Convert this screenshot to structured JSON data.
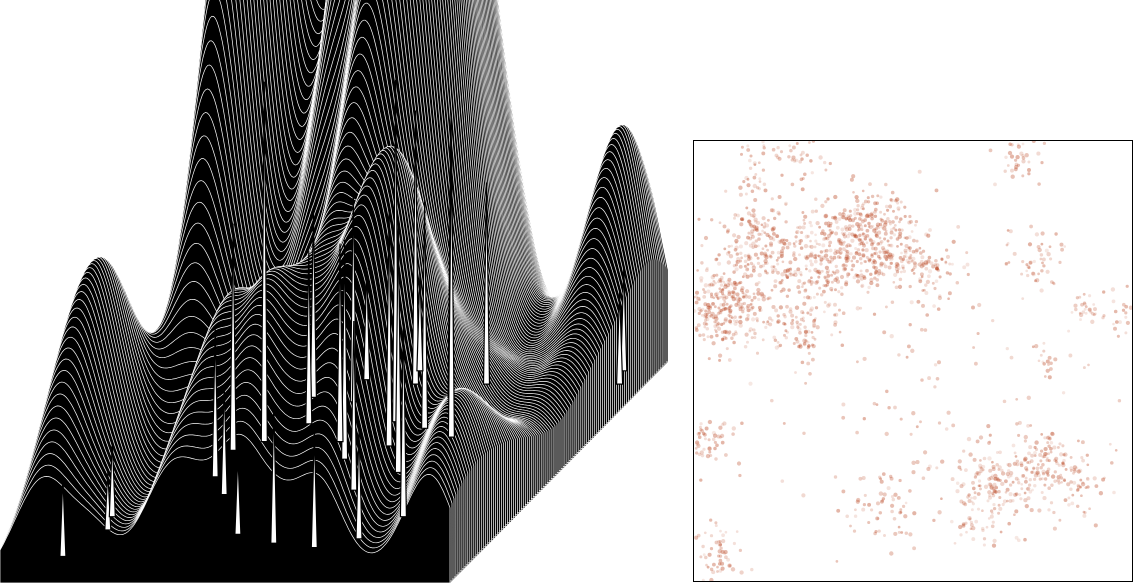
{
  "chart_data": [
    {
      "type": "surface",
      "title": "",
      "xlabel": "",
      "ylabel": "",
      "zlabel": "",
      "grid": false,
      "legend": false,
      "colors": {
        "surface_fill": "#000000",
        "line": "#ffffff",
        "peak_line": "#000000"
      },
      "peaks": [
        {
          "x": 0.27,
          "y": 0.64,
          "z": 1.0
        },
        {
          "x": 0.52,
          "y": 0.73,
          "z": 0.95
        },
        {
          "x": 0.59,
          "y": 0.84,
          "z": 0.79
        },
        {
          "x": 0.48,
          "y": 0.9,
          "z": 0.76
        },
        {
          "x": 0.68,
          "y": 0.66,
          "z": 0.81
        },
        {
          "x": 0.64,
          "y": 0.5,
          "z": 0.69
        },
        {
          "x": 0.56,
          "y": 0.62,
          "z": 0.66
        },
        {
          "x": 0.49,
          "y": 0.56,
          "z": 0.61
        },
        {
          "x": 0.6,
          "y": 0.7,
          "z": 0.63
        },
        {
          "x": 0.22,
          "y": 0.6,
          "z": 0.63
        },
        {
          "x": 0.38,
          "y": 0.82,
          "z": 0.58
        },
        {
          "x": 0.44,
          "y": 0.64,
          "z": 0.55
        },
        {
          "x": 0.64,
          "y": 0.9,
          "z": 0.56
        },
        {
          "x": 0.75,
          "y": 0.3,
          "z": 0.55
        },
        {
          "x": 0.28,
          "y": 0.84,
          "z": 0.52
        },
        {
          "x": 0.33,
          "y": 0.72,
          "z": 0.48
        },
        {
          "x": 0.24,
          "y": 0.48,
          "z": 0.41
        },
        {
          "x": 0.58,
          "y": 0.42,
          "z": 0.47
        },
        {
          "x": 0.52,
          "y": 0.18,
          "z": 0.38
        },
        {
          "x": 0.7,
          "y": 0.2,
          "z": 0.3
        },
        {
          "x": 0.92,
          "y": 0.96,
          "z": 0.29
        },
        {
          "x": 0.94,
          "y": 0.9,
          "z": 0.26
        },
        {
          "x": 0.62,
          "y": 0.16,
          "z": 0.32
        },
        {
          "x": 0.12,
          "y": 0.24,
          "z": 0.16
        },
        {
          "x": 0.42,
          "y": 0.22,
          "z": 0.22
        },
        {
          "x": 0.08,
          "y": 0.12,
          "z": 0.22
        },
        {
          "x": 0.3,
          "y": 0.4,
          "z": 0.3
        },
        {
          "x": 0.36,
          "y": 0.92,
          "z": 0.31
        },
        {
          "x": 0.46,
          "y": 0.96,
          "z": 0.27
        },
        {
          "x": 0.1,
          "y": 0.3,
          "z": 0.21
        }
      ]
    },
    {
      "type": "scatter",
      "title": "",
      "xlabel": "",
      "ylabel": "",
      "grid": false,
      "legend": false,
      "xlim": [
        0,
        1
      ],
      "ylim": [
        0,
        1
      ],
      "colors": {
        "point": "#b8401b",
        "frame": "#000000"
      },
      "clusters": [
        {
          "x": 0.07,
          "y": 0.63,
          "spread": 0.055,
          "n": 320
        },
        {
          "x": 0.14,
          "y": 0.77,
          "spread": 0.045,
          "n": 150
        },
        {
          "x": 0.28,
          "y": 0.73,
          "spread": 0.06,
          "n": 220
        },
        {
          "x": 0.38,
          "y": 0.79,
          "spread": 0.06,
          "n": 230
        },
        {
          "x": 0.44,
          "y": 0.75,
          "spread": 0.05,
          "n": 120
        },
        {
          "x": 0.25,
          "y": 0.58,
          "spread": 0.04,
          "n": 90
        },
        {
          "x": 0.54,
          "y": 0.7,
          "spread": 0.04,
          "n": 80
        },
        {
          "x": 0.75,
          "y": 0.97,
          "spread": 0.03,
          "n": 40
        },
        {
          "x": 0.78,
          "y": 0.73,
          "spread": 0.035,
          "n": 45
        },
        {
          "x": 0.9,
          "y": 0.62,
          "spread": 0.025,
          "n": 30
        },
        {
          "x": 0.99,
          "y": 0.61,
          "spread": 0.03,
          "n": 25
        },
        {
          "x": 0.81,
          "y": 0.5,
          "spread": 0.02,
          "n": 15
        },
        {
          "x": 0.03,
          "y": 0.32,
          "spread": 0.03,
          "n": 50
        },
        {
          "x": 0.68,
          "y": 0.22,
          "spread": 0.05,
          "n": 150
        },
        {
          "x": 0.79,
          "y": 0.27,
          "spread": 0.045,
          "n": 110
        },
        {
          "x": 0.88,
          "y": 0.23,
          "spread": 0.04,
          "n": 60
        },
        {
          "x": 0.44,
          "y": 0.17,
          "spread": 0.045,
          "n": 60
        },
        {
          "x": 0.06,
          "y": 0.06,
          "spread": 0.035,
          "n": 55
        },
        {
          "x": 0.63,
          "y": 0.13,
          "spread": 0.03,
          "n": 30
        },
        {
          "x": 0.15,
          "y": 0.93,
          "spread": 0.035,
          "n": 40
        },
        {
          "x": 0.24,
          "y": 0.96,
          "spread": 0.03,
          "n": 25
        },
        {
          "x": 0.5,
          "y": 0.5,
          "spread": 0.2,
          "n": 120
        }
      ]
    }
  ]
}
